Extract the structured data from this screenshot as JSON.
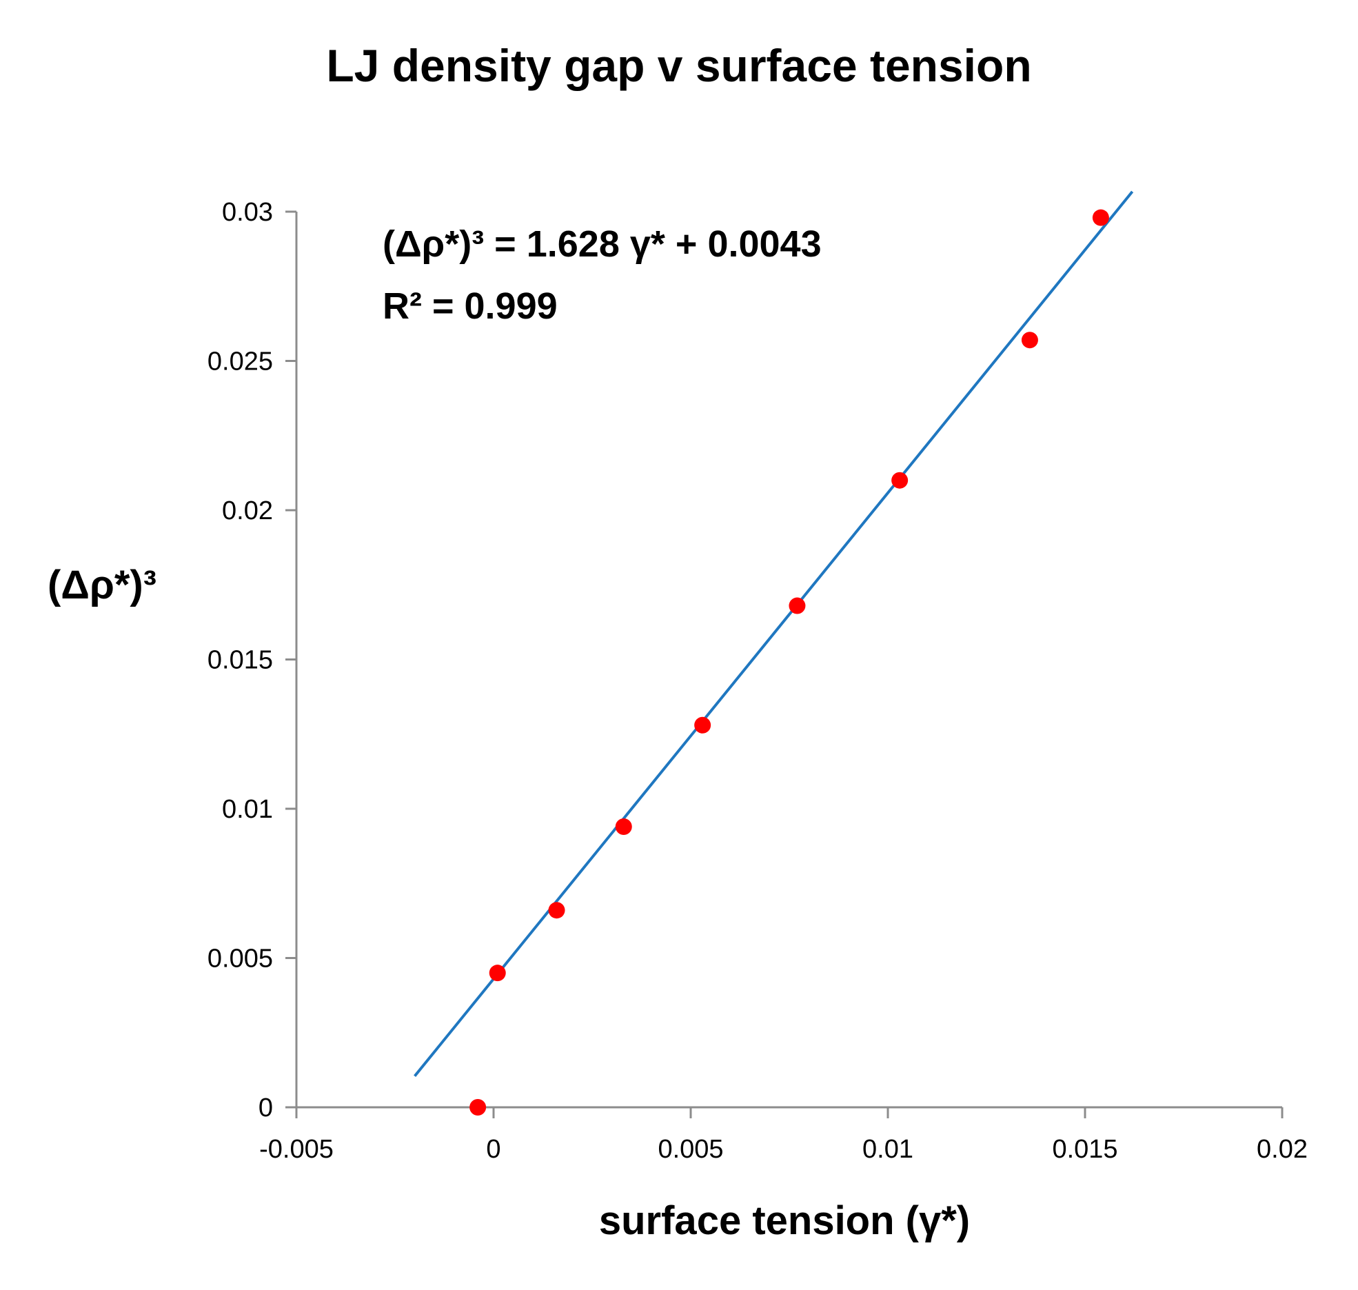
{
  "chart_data": {
    "type": "scatter",
    "title": "LJ density gap v surface tension",
    "xlabel": "surface tension (γ*)",
    "ylabel": "(Δρ*)³",
    "xlim": [
      -0.005,
      0.02
    ],
    "ylim": [
      0,
      0.03
    ],
    "x_ticks": [
      "-0.005",
      "0",
      "0.005",
      "0.01",
      "0.015",
      "0.02"
    ],
    "y_ticks": [
      "0",
      "0.005",
      "0.01",
      "0.015",
      "0.02",
      "0.025",
      "0.03"
    ],
    "grid": false,
    "legend": "none",
    "series": [
      {
        "marker": "circle",
        "color": "#ff0000",
        "points": [
          {
            "x": -0.0004,
            "y": 0.0
          },
          {
            "x": 0.0001,
            "y": 0.0045
          },
          {
            "x": 0.0016,
            "y": 0.0066
          },
          {
            "x": 0.0033,
            "y": 0.0094
          },
          {
            "x": 0.0053,
            "y": 0.0128
          },
          {
            "x": 0.0077,
            "y": 0.0168
          },
          {
            "x": 0.0103,
            "y": 0.021
          },
          {
            "x": 0.0136,
            "y": 0.0257
          },
          {
            "x": 0.0154,
            "y": 0.0298
          }
        ]
      }
    ],
    "trendline": {
      "type": "linear",
      "slope": 1.628,
      "intercept": 0.0043,
      "x_range": [
        -0.002,
        0.0162
      ],
      "color": "#1f77c0"
    },
    "annotations": [
      {
        "id": "equation",
        "text": "(Δρ*)³ = 1.628 γ* + 0.0043"
      },
      {
        "id": "r-squared",
        "text": "R² = 0.999"
      }
    ],
    "axis_color": "#8c8c8c"
  }
}
